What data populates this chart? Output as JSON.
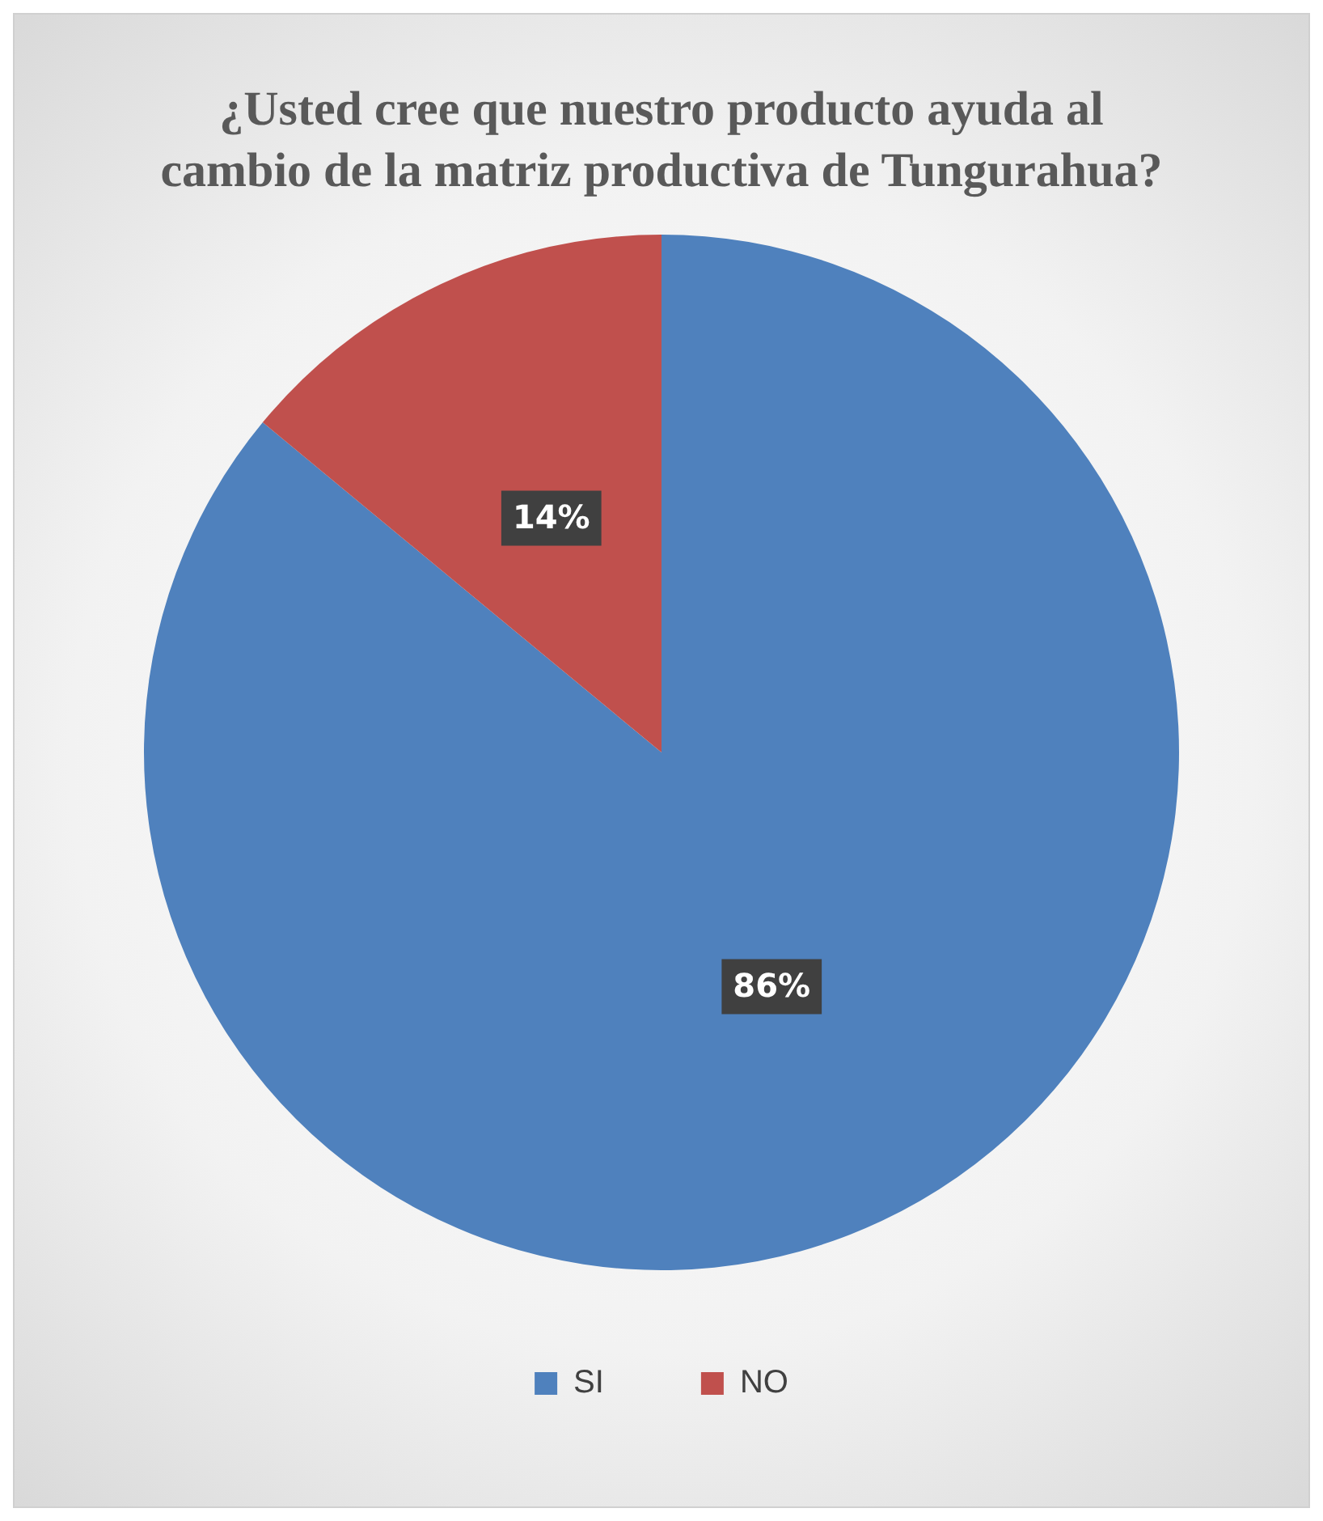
{
  "chart_data": {
    "type": "pie",
    "title": "¿Usted cree que nuestro producto ayuda al cambio de la  matriz productiva de Tungurahua?",
    "categories": [
      "SI",
      "NO"
    ],
    "values": [
      86,
      14
    ],
    "colors": [
      "#4f81bd",
      "#c0504d"
    ],
    "value_labels": [
      "86%",
      "14%"
    ],
    "legend": "bottom"
  }
}
